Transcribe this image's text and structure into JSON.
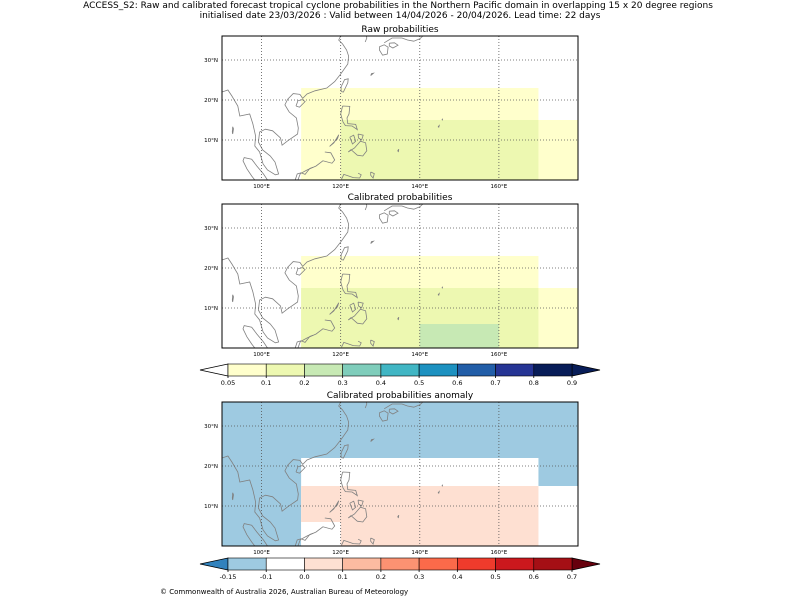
{
  "header": {
    "line1": "ACCESS_S2: Raw and calibrated forecast tropical cyclone probabilities in the Northern Pacific domain in overlapping 15 x 20 degree regions",
    "line2": "initialised date 23/03/2026 :  Valid between 14/04/2026 - 20/04/2026. Lead time: 22 days"
  },
  "footer": {
    "copyright": "© Commonwealth of Australia 2026, Australian Bureau of Meteorology"
  },
  "chart_data": [
    {
      "type": "heatmap",
      "title": "Raw probabilities",
      "xlim": [
        90,
        180
      ],
      "ylim": [
        0,
        36
      ],
      "x_ticks": [
        100,
        120,
        140,
        160
      ],
      "x_tick_labels": [
        "100°E",
        "120°E",
        "140°E",
        "160°E"
      ],
      "y_ticks": [
        10,
        20,
        30
      ],
      "y_tick_labels": [
        "10°N",
        "20°N",
        "30°N"
      ],
      "grid": true,
      "cells": [
        {
          "lon": [
            110,
            170
          ],
          "lat": [
            0,
            23
          ],
          "value": 0.05
        },
        {
          "lon": [
            170,
            180
          ],
          "lat": [
            0,
            15
          ],
          "value": 0.05
        },
        {
          "lon": [
            120,
            170
          ],
          "lat": [
            0,
            15
          ],
          "value": 0.1
        }
      ]
    },
    {
      "type": "heatmap",
      "title": "Calibrated probabilities",
      "xlim": [
        90,
        180
      ],
      "ylim": [
        0,
        36
      ],
      "x_ticks": [
        100,
        120,
        140,
        160
      ],
      "x_tick_labels": [
        "100°E",
        "120°E",
        "140°E",
        "160°E"
      ],
      "y_ticks": [
        10,
        20,
        30
      ],
      "y_tick_labels": [
        "10°N",
        "20°N",
        "30°N"
      ],
      "grid": true,
      "cells": [
        {
          "lon": [
            110,
            170
          ],
          "lat": [
            0,
            23
          ],
          "value": 0.05
        },
        {
          "lon": [
            170,
            180
          ],
          "lat": [
            0,
            15
          ],
          "value": 0.05
        },
        {
          "lon": [
            110,
            170
          ],
          "lat": [
            0,
            15
          ],
          "value": 0.1
        },
        {
          "lon": [
            140,
            160
          ],
          "lat": [
            0,
            6
          ],
          "value": 0.2
        }
      ]
    },
    {
      "type": "heatmap",
      "title": "Calibrated probabilities anomaly",
      "xlim": [
        90,
        180
      ],
      "ylim": [
        0,
        36
      ],
      "x_ticks": [
        100,
        120,
        140,
        160
      ],
      "x_tick_labels": [
        "100°E",
        "120°E",
        "140°E",
        "160°E"
      ],
      "y_ticks": [
        10,
        20,
        30
      ],
      "y_tick_labels": [
        "10°N",
        "20°N",
        "30°N"
      ],
      "grid": true,
      "cells": [
        {
          "lon": [
            90,
            180
          ],
          "lat": [
            0,
            36
          ],
          "value": -0.15
        },
        {
          "lon": [
            110,
            170
          ],
          "lat": [
            0,
            22
          ],
          "value": -0.1
        },
        {
          "lon": [
            170,
            180
          ],
          "lat": [
            0,
            15
          ],
          "value": -0.1
        },
        {
          "lon": [
            110,
            170
          ],
          "lat": [
            0,
            15
          ],
          "value": 0.0
        },
        {
          "lon": [
            110,
            120
          ],
          "lat": [
            0,
            6
          ],
          "value": -0.1
        },
        {
          "lon": [
            140,
            160
          ],
          "lat": [
            0,
            6
          ],
          "value": 0.0
        }
      ]
    }
  ],
  "colorbars": [
    {
      "name": "probability",
      "tick_labels": [
        "0.05",
        "0.1",
        "0.2",
        "0.3",
        "0.4",
        "0.5",
        "0.6",
        "0.7",
        "0.8",
        "0.9"
      ],
      "colors": [
        "#ffffcc",
        "#edf8b1",
        "#c7e9b4",
        "#7fcdbb",
        "#41b6c4",
        "#1d91c0",
        "#225ea8",
        "#253494",
        "#081d58"
      ],
      "under_color": "#ffffff",
      "over_color": "#081d58"
    },
    {
      "name": "anomaly",
      "tick_labels": [
        "-0.15",
        "-0.1",
        "0.0",
        "0.1",
        "0.2",
        "0.3",
        "0.4",
        "0.5",
        "0.6",
        "0.7"
      ],
      "colors": [
        "#9ecae1",
        "#ffffff",
        "#fee0d2",
        "#fcbba1",
        "#fc9272",
        "#fb6a4a",
        "#ef3b2c",
        "#cb181d",
        "#a50f15"
      ],
      "under_color": "#3182bd",
      "over_color": "#67000d"
    }
  ]
}
